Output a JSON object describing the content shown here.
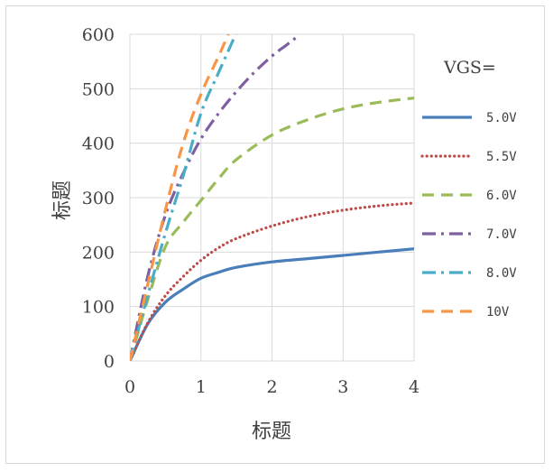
{
  "chart_data": {
    "type": "line",
    "title": "",
    "xlabel": "标题",
    "ylabel": "标题",
    "xlim": [
      0,
      4
    ],
    "ylim": [
      0,
      600
    ],
    "xticks": [
      "0",
      "1",
      "2",
      "3",
      "4"
    ],
    "yticks": [
      "0",
      "100",
      "200",
      "300",
      "400",
      "500",
      "600"
    ],
    "grid": "vertical and horizontal",
    "legend_title": "VGS=",
    "legend_position": "right",
    "series": [
      {
        "name": "5.0V",
        "color": "#4a7ebb",
        "dash": "solid",
        "x": [
          0,
          0.25,
          0.5,
          0.75,
          1.0,
          1.25,
          1.5,
          2.0,
          2.5,
          3.0,
          3.5,
          4.0
        ],
        "y": [
          0,
          68,
          108,
          132,
          152,
          163,
          172,
          182,
          188,
          194,
          200,
          206
        ]
      },
      {
        "name": "5.5V",
        "color": "#be4b48",
        "dash": "dotted",
        "x": [
          0,
          0.25,
          0.5,
          0.75,
          1.0,
          1.25,
          1.5,
          2.0,
          2.5,
          3.0,
          3.5,
          4.0
        ],
        "y": [
          0,
          70,
          120,
          155,
          185,
          208,
          225,
          248,
          265,
          277,
          285,
          290
        ]
      },
      {
        "name": "6.0V",
        "color": "#9bbb59",
        "dash": "dashed",
        "x": [
          0,
          0.25,
          0.5,
          0.75,
          1.0,
          1.25,
          1.5,
          2.0,
          2.5,
          3.0,
          3.5,
          4.0
        ],
        "y": [
          0,
          112,
          210,
          255,
          295,
          335,
          370,
          415,
          443,
          463,
          475,
          483
        ]
      },
      {
        "name": "7.0V",
        "color": "#7e5fa0",
        "dash": "dash-dot",
        "x": [
          0,
          0.25,
          0.5,
          0.75,
          1.0,
          1.25,
          1.5,
          1.75,
          2.0,
          2.2,
          2.33
        ],
        "y": [
          0,
          155,
          268,
          345,
          408,
          455,
          495,
          530,
          560,
          580,
          593
        ]
      },
      {
        "name": "8.0V",
        "color": "#4bacc6",
        "dash": "dash-dot",
        "x": [
          0,
          0.25,
          0.5,
          0.75,
          1.0,
          1.25,
          1.5
        ],
        "y": [
          0,
          120,
          235,
          340,
          455,
          530,
          603
        ]
      },
      {
        "name": "10V",
        "color": "#f79646",
        "dash": "dashed",
        "x": [
          0,
          0.25,
          0.5,
          0.75,
          1.0,
          1.25,
          1.4
        ],
        "y": [
          0,
          140,
          278,
          400,
          490,
          560,
          605
        ]
      }
    ]
  }
}
